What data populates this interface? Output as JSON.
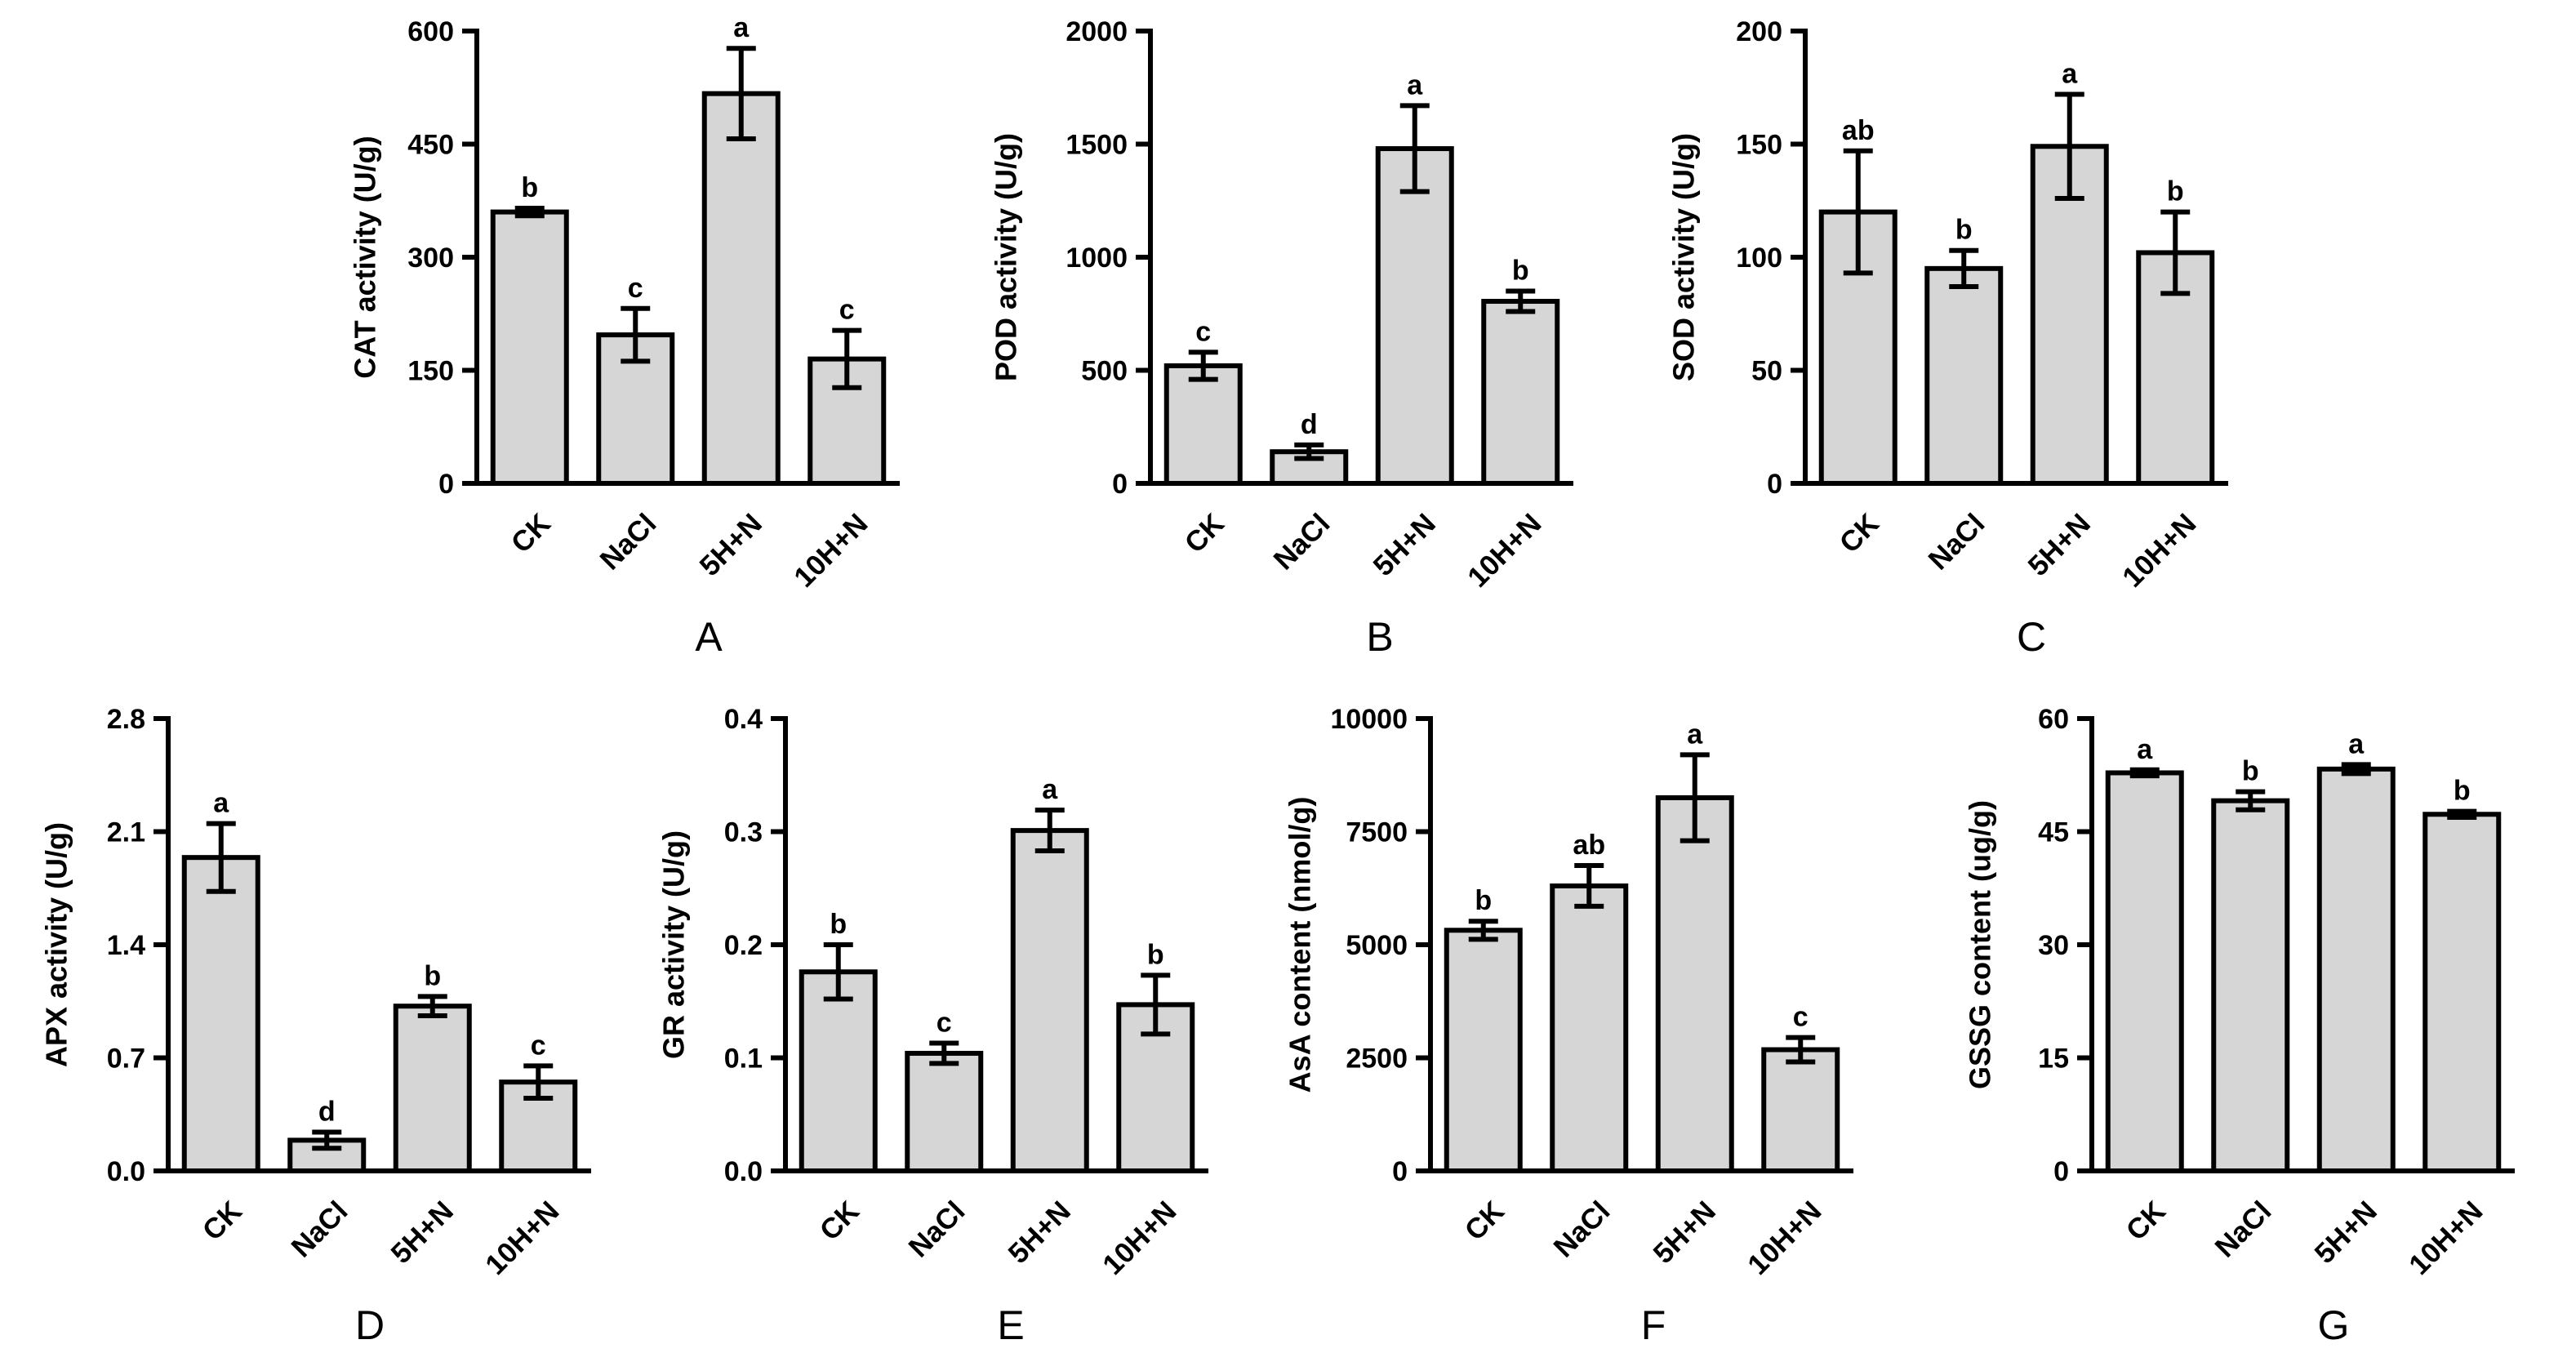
{
  "colors": {
    "bar_fill": "#d6d6d6",
    "stroke": "#000000",
    "background": "#ffffff"
  },
  "chart_data": [
    {
      "panel": "A",
      "type": "bar",
      "categories": [
        "CK",
        "NaCl",
        "5H+N",
        "10H+N"
      ],
      "values": [
        360,
        197,
        517,
        165
      ],
      "errors": [
        5,
        35,
        60,
        38
      ],
      "letters": [
        "b",
        "c",
        "a",
        "c"
      ],
      "ylabel": "CAT activity (U/g)",
      "ylim": [
        0,
        600
      ],
      "yticks": [
        0,
        150,
        300,
        450,
        600
      ],
      "ytick_labels": [
        "0",
        "150",
        "300",
        "450",
        "600"
      ]
    },
    {
      "panel": "B",
      "type": "bar",
      "categories": [
        "CK",
        "NaCl",
        "5H+N",
        "10H+N"
      ],
      "values": [
        520,
        140,
        1480,
        805
      ],
      "errors": [
        60,
        30,
        190,
        45
      ],
      "letters": [
        "c",
        "d",
        "a",
        "b"
      ],
      "ylabel": "POD activity (U/g)",
      "ylim": [
        0,
        2000
      ],
      "yticks": [
        0,
        500,
        1000,
        1500,
        2000
      ],
      "ytick_labels": [
        "0",
        "500",
        "1000",
        "1500",
        "2000"
      ]
    },
    {
      "panel": "C",
      "type": "bar",
      "categories": [
        "CK",
        "NaCl",
        "5H+N",
        "10H+N"
      ],
      "values": [
        120,
        95,
        149,
        102
      ],
      "errors": [
        27,
        8,
        23,
        18
      ],
      "letters": [
        "ab",
        "b",
        "a",
        "b"
      ],
      "ylabel": "SOD activity (U/g)",
      "ylim": [
        0,
        200
      ],
      "yticks": [
        0,
        50,
        100,
        150,
        200
      ],
      "ytick_labels": [
        "0",
        "50",
        "100",
        "150",
        "200"
      ]
    },
    {
      "panel": "D",
      "type": "bar",
      "categories": [
        "CK",
        "NaCl",
        "5H+N",
        "10H+N"
      ],
      "values": [
        1.94,
        0.19,
        1.02,
        0.55
      ],
      "errors": [
        0.21,
        0.05,
        0.06,
        0.1
      ],
      "letters": [
        "a",
        "d",
        "b",
        "c"
      ],
      "ylabel": "APX activity (U/g)",
      "ylim": [
        0,
        2.8
      ],
      "yticks": [
        0,
        0.7,
        1.4,
        2.1,
        2.8
      ],
      "ytick_labels": [
        "0.0",
        "0.7",
        "1.4",
        "2.1",
        "2.8"
      ]
    },
    {
      "panel": "E",
      "type": "bar",
      "categories": [
        "CK",
        "NaCl",
        "5H+N",
        "10H+N"
      ],
      "values": [
        0.176,
        0.104,
        0.301,
        0.147
      ],
      "errors": [
        0.024,
        0.009,
        0.018,
        0.026
      ],
      "letters": [
        "b",
        "c",
        "a",
        "b"
      ],
      "ylabel": "GR activity (U/g)",
      "ylim": [
        0,
        0.4
      ],
      "yticks": [
        0,
        0.1,
        0.2,
        0.3,
        0.4
      ],
      "ytick_labels": [
        "0.0",
        "0.1",
        "0.2",
        "0.3",
        "0.4"
      ]
    },
    {
      "panel": "F",
      "type": "bar",
      "categories": [
        "CK",
        "NaCl",
        "5H+N",
        "10H+N"
      ],
      "values": [
        5320,
        6300,
        8250,
        2680
      ],
      "errors": [
        200,
        450,
        950,
        270
      ],
      "letters": [
        "b",
        "ab",
        "a",
        "c"
      ],
      "ylabel": "AsA content (nmol/g)",
      "ylim": [
        0,
        10000
      ],
      "yticks": [
        0,
        2500,
        5000,
        7500,
        10000
      ],
      "ytick_labels": [
        "0",
        "2500",
        "5000",
        "7500",
        "10000"
      ]
    },
    {
      "panel": "G",
      "type": "bar",
      "categories": [
        "CK",
        "NaCl",
        "5H+N",
        "10H+N"
      ],
      "values": [
        52.8,
        49.1,
        53.3,
        47.3
      ],
      "errors": [
        0.4,
        1.2,
        0.6,
        0.4
      ],
      "letters": [
        "a",
        "b",
        "a",
        "b"
      ],
      "ylabel": "GSSG content (ug/g)",
      "ylim": [
        0,
        60
      ],
      "yticks": [
        0,
        15,
        30,
        45,
        60
      ],
      "ytick_labels": [
        "0",
        "15",
        "30",
        "45",
        "60"
      ]
    }
  ]
}
